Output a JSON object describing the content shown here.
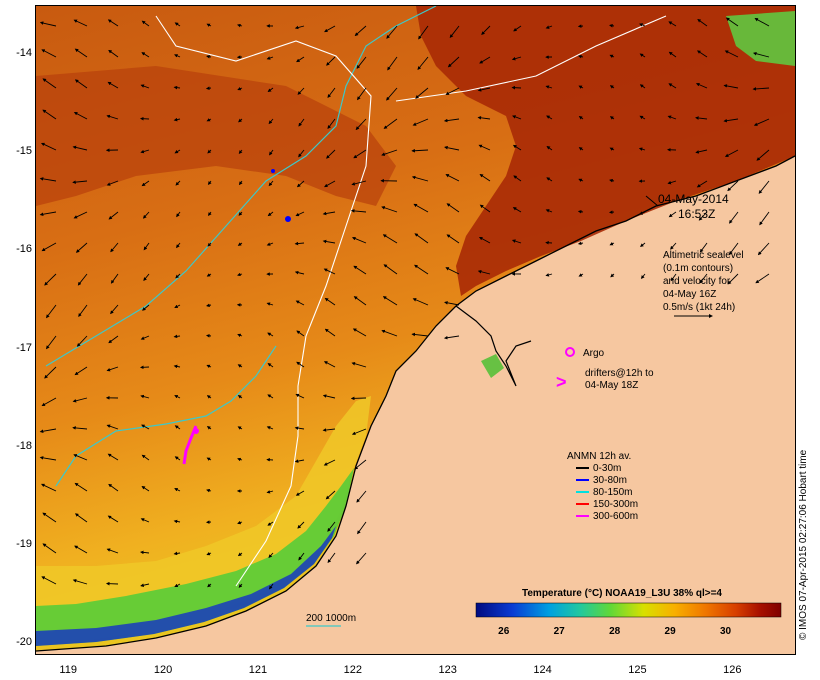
{
  "map": {
    "date": "04-May-2014",
    "time": "16:53Z",
    "altimetry_note": [
      "Altimetric sealevel",
      "(0.1m contours)",
      "and velocity for",
      "04-May 16Z",
      "0.5m/s (1kt 24h)"
    ],
    "argo_label": "Argo",
    "drifters_label": [
      "drifters@12h to",
      "04-May 18Z"
    ],
    "anmn_title": "ANMN 12h av.",
    "anmn_legend": [
      {
        "label": "0-30m",
        "color": "#000000"
      },
      {
        "label": "30-80m",
        "color": "#0000ff"
      },
      {
        "label": "80-150m",
        "color": "#00e0e0"
      },
      {
        "label": "150-300m",
        "color": "#ff0000"
      },
      {
        "label": "300-600m",
        "color": "#ff00ff"
      }
    ],
    "depth_legend": "200  1000m",
    "colorbar_title": "Temperature (°C) NOAA19_L3U 38% ql>=4",
    "colorbar_ticks": [
      "26",
      "27",
      "28",
      "29",
      "30"
    ],
    "colorbar_range": [
      25.5,
      31
    ],
    "colorbar_colors": [
      "#000a80",
      "#0a3cd4",
      "#00a0e0",
      "#20c8a0",
      "#60d838",
      "#d8e000",
      "#f8b000",
      "#f07800",
      "#d84000",
      "#a81000",
      "#800000"
    ],
    "credit": "© IMOS 07-Apr-2015 02:27:06 Hobart time",
    "lon_ticks": [
      "119",
      "120",
      "121",
      "122",
      "123",
      "124",
      "125",
      "126"
    ],
    "lat_ticks": [
      "-14",
      "-15",
      "-16",
      "-17",
      "-18",
      "-19",
      "-20"
    ],
    "lon_range": [
      118.65,
      126.65
    ],
    "lat_range": [
      -13.5,
      -20.1
    ],
    "colors": {
      "land": "#f6c7a0",
      "sea_warm": "#b83a08",
      "sea_mid": "#e07818",
      "contour_200": "#3ec8c8",
      "contour_1000": "#ffffff"
    }
  }
}
